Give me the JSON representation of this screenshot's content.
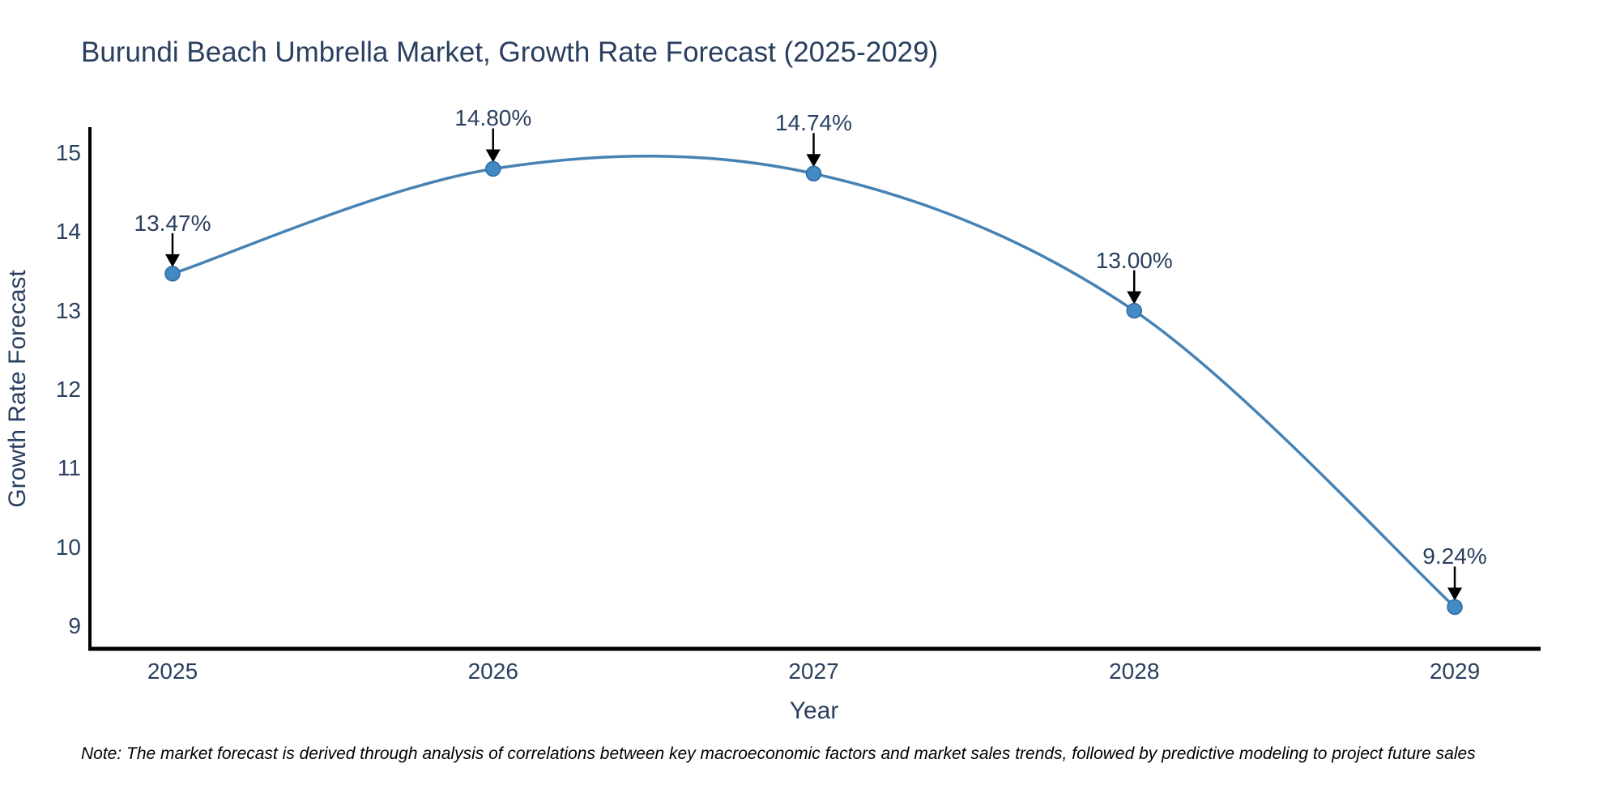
{
  "chart_data": {
    "type": "line",
    "title": "Burundi Beach Umbrella Market, Growth Rate Forecast (2025-2029)",
    "xlabel": "Year",
    "ylabel": "Growth Rate Forecast",
    "categories": [
      "2025",
      "2026",
      "2027",
      "2028",
      "2029"
    ],
    "series": [
      {
        "name": "Growth Rate Forecast",
        "values": [
          13.47,
          14.8,
          14.74,
          13.0,
          9.24
        ]
      }
    ],
    "point_labels": [
      "13.47%",
      "14.80%",
      "14.74%",
      "13.00%",
      "9.24%"
    ],
    "yticks": [
      9,
      10,
      11,
      12,
      13,
      14,
      15
    ],
    "ylim": [
      8.7,
      15.35
    ],
    "line_shape": "spline",
    "grid": false,
    "legend_position": "none",
    "colors": {
      "line": "#4682b4",
      "marker_fill": "#4389c4",
      "marker_edge": "#2f6ba3",
      "arrow": "#000000",
      "text": "#2a3f5f",
      "axis": "#000000",
      "background": "#ffffff"
    },
    "note": "Note: The market forecast is derived through analysis of correlations between key macroeconomic factors and market sales trends, followed by predictive modeling to project future sales"
  }
}
